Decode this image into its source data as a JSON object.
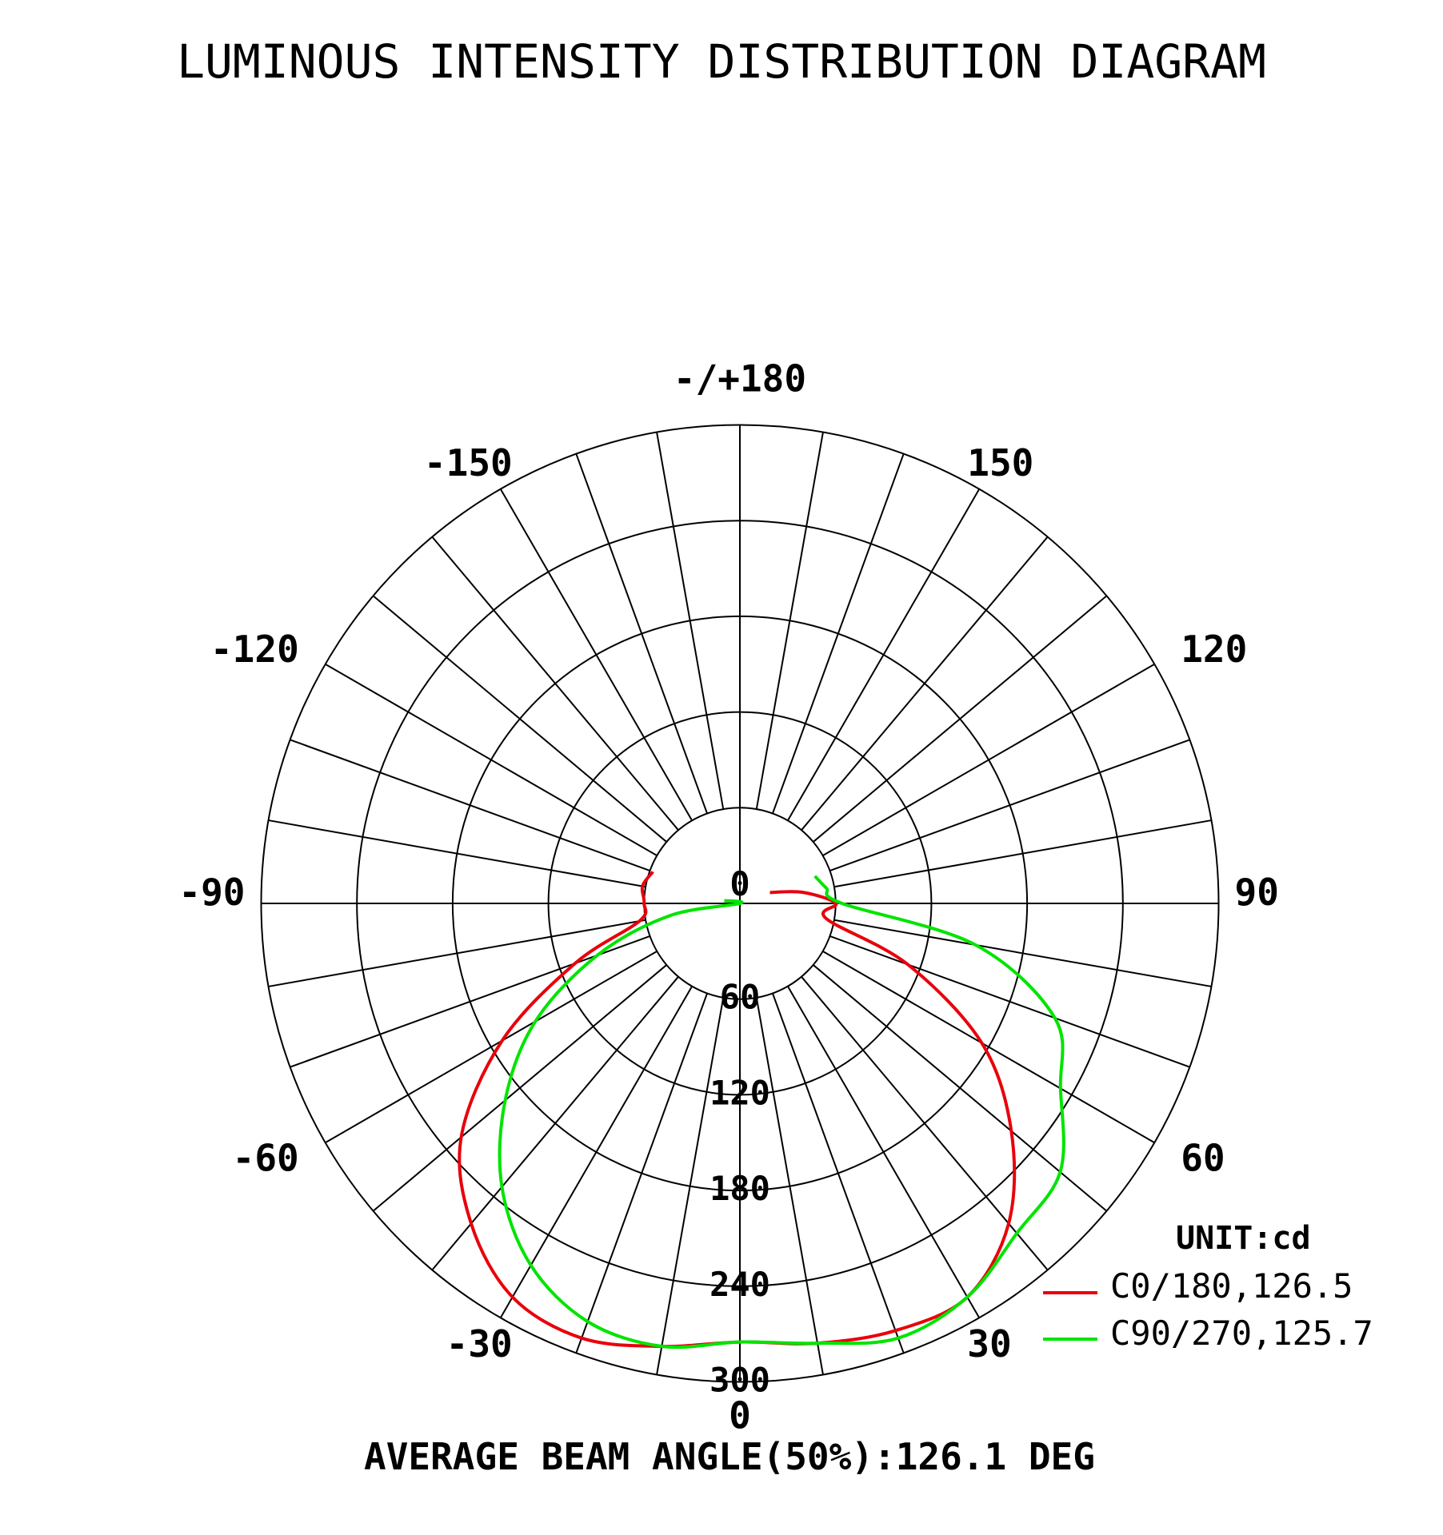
{
  "title": "LUMINOUS INTENSITY DISTRIBUTION DIAGRAM",
  "footer": "AVERAGE BEAM ANGLE(50%):126.1 DEG",
  "unit_label": "UNIT:cd",
  "chart_data": {
    "type": "polar",
    "title": "LUMINOUS INTENSITY DISTRIBUTION DIAGRAM",
    "unit": "cd",
    "radial_ticks": [
      "0",
      "60",
      "120",
      "180",
      "240",
      "300"
    ],
    "radial_max": 300,
    "angle_labels": [
      {
        "angle": 0,
        "text": "0"
      },
      {
        "angle": 30,
        "text": "30"
      },
      {
        "angle": -30,
        "text": "-30"
      },
      {
        "angle": 60,
        "text": "60"
      },
      {
        "angle": -60,
        "text": "-60"
      },
      {
        "angle": 90,
        "text": "90"
      },
      {
        "angle": -90,
        "text": "-90"
      },
      {
        "angle": 120,
        "text": "120"
      },
      {
        "angle": -120,
        "text": "-120"
      },
      {
        "angle": 150,
        "text": "150"
      },
      {
        "angle": -150,
        "text": "-150"
      },
      {
        "angle": 180,
        "text": "-/+180"
      }
    ],
    "spoke_step_deg": 10,
    "grid": true,
    "legend_position": "bottom-right",
    "beam_angle_deg": 126.1,
    "series": [
      {
        "name": "C0/180,126.5",
        "color": "#e8000b",
        "angles": [
          -110,
          -100,
          -90,
          -80,
          -70,
          -60,
          -50,
          -40,
          -30,
          -20,
          -10,
          0,
          10,
          20,
          30,
          40,
          50,
          60,
          70,
          80,
          90,
          100,
          110
        ],
        "values": [
          58,
          62,
          60,
          64,
          110,
          172,
          228,
          262,
          285,
          290,
          282,
          275,
          280,
          285,
          285,
          262,
          222,
          175,
          112,
          55,
          60,
          40,
          20
        ]
      },
      {
        "name": "C90/270,125.7",
        "color": "#00e400",
        "angles": [
          -100,
          -90,
          -80,
          -70,
          -60,
          -50,
          -40,
          -30,
          -20,
          -10,
          0,
          10,
          20,
          30,
          40,
          50,
          60,
          70,
          80,
          90,
          100,
          110
        ],
        "values": [
          10,
          0,
          45,
          95,
          148,
          192,
          232,
          262,
          279,
          282,
          275,
          280,
          290,
          285,
          270,
          262,
          232,
          210,
          150,
          64,
          55,
          50
        ]
      }
    ]
  }
}
